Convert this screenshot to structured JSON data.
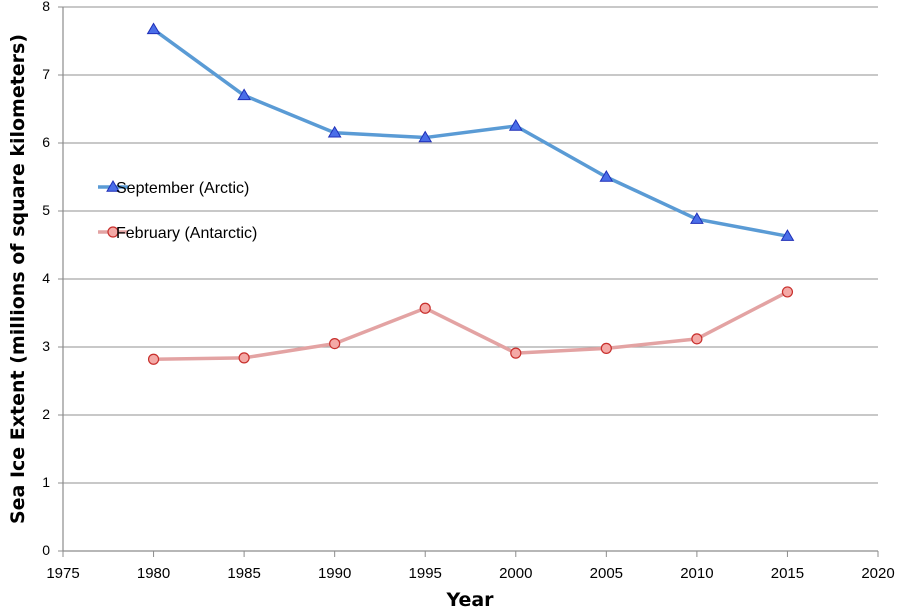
{
  "chart_data": {
    "type": "line",
    "xlabel": "Year",
    "ylabel": "Sea Ice Extent (millions of square kilometers)",
    "xlim": [
      1975,
      2020
    ],
    "ylim": [
      0,
      8
    ],
    "x_ticks": [
      1975,
      1980,
      1985,
      1990,
      1995,
      2000,
      2005,
      2010,
      2015,
      2020
    ],
    "y_ticks": [
      0,
      1,
      2,
      3,
      4,
      5,
      6,
      7,
      8
    ],
    "grid": "horizontal",
    "legend_position": "left",
    "x": [
      1980,
      1985,
      1990,
      1995,
      2000,
      2005,
      2010,
      2015
    ],
    "series": [
      {
        "name": "September (Arctic)",
        "values": [
          7.67,
          6.7,
          6.15,
          6.08,
          6.25,
          5.5,
          4.88,
          4.63
        ],
        "color": "#5a9bd5",
        "marker": "triangle",
        "marker_fill": "#4a6ee8",
        "marker_stroke": "#1f2fb8"
      },
      {
        "name": "February (Antarctic)",
        "values": [
          2.82,
          2.84,
          3.05,
          3.57,
          2.91,
          2.98,
          3.12,
          3.81
        ],
        "color": "#e3a3a3",
        "marker": "circle",
        "marker_fill": "#f4a9a6",
        "marker_stroke": "#c8302d"
      }
    ]
  }
}
